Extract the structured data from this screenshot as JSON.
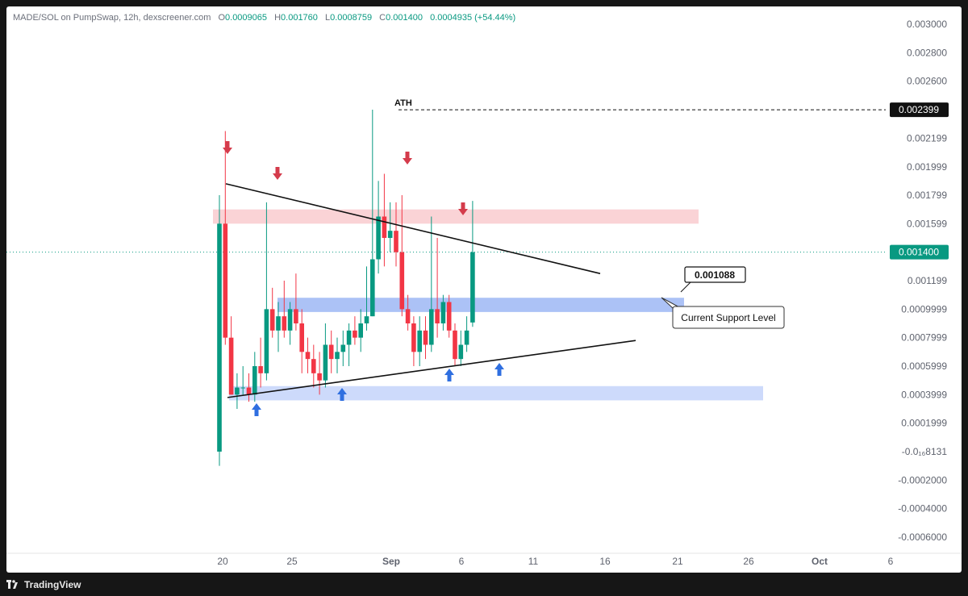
{
  "legend": {
    "title": "MADE/SOL on PumpSwap, 12h, dexscreener.com",
    "o_label": "O",
    "o_value": "0.0009065",
    "h_label": "H",
    "h_value": "0.001760",
    "l_label": "L",
    "l_value": "0.0008759",
    "c_label": "C",
    "c_value": "0.001400",
    "change": "0.0004935 (+54.44%)"
  },
  "footer": {
    "brand": "TradingView"
  },
  "colors": {
    "up": "#089981",
    "down": "#f23645",
    "resistance_zone": "#f8c4c8",
    "support_zone": "#9db7f5",
    "support_zone_light": "#c8d6fb",
    "arrow_down": "#d43b4b",
    "arrow_up": "#2f6fe0"
  },
  "chart_data": {
    "type": "candlestick",
    "title": "MADE/SOL on PumpSwap, 12h",
    "y_tick_labels": [
      "0.003000",
      "0.002800",
      "0.002600",
      "0.002399",
      "0.002199",
      "0.001999",
      "0.001799",
      "0.001599",
      "0.001400",
      "0.001199",
      "0.0009999",
      "0.0007999",
      "0.0005999",
      "0.0003999",
      "0.0001999",
      "-0.0₁₆8131",
      "-0.0002000",
      "-0.0004000",
      "-0.0006000"
    ],
    "x_tick_labels": [
      "20",
      "25",
      "Sep",
      "6",
      "11",
      "16",
      "21",
      "26",
      "Oct",
      "6"
    ],
    "ylim": [
      -0.00065,
      0.00305
    ],
    "candles": [
      {
        "t": "Aug 20",
        "o": 0.0,
        "h": 0.0018,
        "l": -0.0001,
        "c": 0.0016
      },
      {
        "t": "Aug 20",
        "o": 0.0016,
        "h": 0.00225,
        "l": 0.00075,
        "c": 0.0008
      },
      {
        "t": "Aug 21",
        "o": 0.0008,
        "h": 0.00095,
        "l": 0.0004,
        "c": 0.0004
      },
      {
        "t": "Aug 21",
        "o": 0.0004,
        "h": 0.00055,
        "l": 0.0003,
        "c": 0.00045
      },
      {
        "t": "Aug 22",
        "o": 0.00045,
        "h": 0.0006,
        "l": 0.0004,
        "c": 0.00045
      },
      {
        "t": "Aug 22",
        "o": 0.00045,
        "h": 0.00055,
        "l": 0.00035,
        "c": 0.0004
      },
      {
        "t": "Aug 23",
        "o": 0.0004,
        "h": 0.0007,
        "l": 0.00035,
        "c": 0.0006
      },
      {
        "t": "Aug 23",
        "o": 0.0006,
        "h": 0.0008,
        "l": 0.00045,
        "c": 0.00055
      },
      {
        "t": "Aug 24",
        "o": 0.00055,
        "h": 0.00175,
        "l": 0.0005,
        "c": 0.001
      },
      {
        "t": "Aug 24",
        "o": 0.001,
        "h": 0.00115,
        "l": 0.0008,
        "c": 0.00085
      },
      {
        "t": "Aug 25",
        "o": 0.00085,
        "h": 0.00105,
        "l": 0.0007,
        "c": 0.00095
      },
      {
        "t": "Aug 25",
        "o": 0.00095,
        "h": 0.0012,
        "l": 0.0008,
        "c": 0.00085
      },
      {
        "t": "Aug 26",
        "o": 0.00085,
        "h": 0.00105,
        "l": 0.00075,
        "c": 0.001
      },
      {
        "t": "Aug 26",
        "o": 0.001,
        "h": 0.00125,
        "l": 0.00085,
        "c": 0.0009
      },
      {
        "t": "Aug 27",
        "o": 0.0009,
        "h": 0.001,
        "l": 0.00055,
        "c": 0.0007
      },
      {
        "t": "Aug 27",
        "o": 0.0007,
        "h": 0.0008,
        "l": 0.00055,
        "c": 0.00065
      },
      {
        "t": "Aug 28",
        "o": 0.00065,
        "h": 0.00075,
        "l": 0.00045,
        "c": 0.00055
      },
      {
        "t": "Aug 28",
        "o": 0.00055,
        "h": 0.0007,
        "l": 0.0004,
        "c": 0.0005
      },
      {
        "t": "Aug 29",
        "o": 0.0005,
        "h": 0.0009,
        "l": 0.00045,
        "c": 0.00075
      },
      {
        "t": "Aug 29",
        "o": 0.00075,
        "h": 0.00085,
        "l": 0.00055,
        "c": 0.00065
      },
      {
        "t": "Aug 30",
        "o": 0.00065,
        "h": 0.0008,
        "l": 0.00055,
        "c": 0.0007
      },
      {
        "t": "Aug 30",
        "o": 0.0007,
        "h": 0.00085,
        "l": 0.0006,
        "c": 0.00075
      },
      {
        "t": "Aug 31",
        "o": 0.00075,
        "h": 0.0009,
        "l": 0.0006,
        "c": 0.00085
      },
      {
        "t": "Aug 31",
        "o": 0.00085,
        "h": 0.00095,
        "l": 0.00075,
        "c": 0.0008
      },
      {
        "t": "Sep 1",
        "o": 0.0008,
        "h": 0.001,
        "l": 0.0007,
        "c": 0.0009
      },
      {
        "t": "Sep 1",
        "o": 0.0009,
        "h": 0.0013,
        "l": 0.00085,
        "c": 0.00095
      },
      {
        "t": "Sep 2",
        "o": 0.00095,
        "h": 0.0024,
        "l": 0.00095,
        "c": 0.00135
      },
      {
        "t": "Sep 2",
        "o": 0.00135,
        "h": 0.0019,
        "l": 0.00125,
        "c": 0.00165
      },
      {
        "t": "Sep 3",
        "o": 0.00165,
        "h": 0.00195,
        "l": 0.0013,
        "c": 0.0015
      },
      {
        "t": "Sep 3",
        "o": 0.0015,
        "h": 0.00175,
        "l": 0.0014,
        "c": 0.00155
      },
      {
        "t": "Sep 4",
        "o": 0.00155,
        "h": 0.00175,
        "l": 0.0013,
        "c": 0.0014
      },
      {
        "t": "Sep 4",
        "o": 0.0014,
        "h": 0.0018,
        "l": 0.00095,
        "c": 0.001
      },
      {
        "t": "Sep 5",
        "o": 0.001,
        "h": 0.0011,
        "l": 0.00085,
        "c": 0.0009
      },
      {
        "t": "Sep 5",
        "o": 0.0009,
        "h": 0.00095,
        "l": 0.0006,
        "c": 0.0007
      },
      {
        "t": "Sep 6",
        "o": 0.0007,
        "h": 0.00095,
        "l": 0.0006,
        "c": 0.00085
      },
      {
        "t": "Sep 6",
        "o": 0.00085,
        "h": 0.00095,
        "l": 0.00065,
        "c": 0.00075
      },
      {
        "t": "Sep 7",
        "o": 0.00075,
        "h": 0.00165,
        "l": 0.0007,
        "c": 0.001
      },
      {
        "t": "Sep 7",
        "o": 0.001,
        "h": 0.0015,
        "l": 0.0008,
        "c": 0.0009
      },
      {
        "t": "Sep 8",
        "o": 0.0009,
        "h": 0.0011,
        "l": 0.00085,
        "c": 0.00105
      },
      {
        "t": "Sep 8",
        "o": 0.00105,
        "h": 0.0011,
        "l": 0.0008,
        "c": 0.00085
      },
      {
        "t": "Sep 9",
        "o": 0.00085,
        "h": 0.0009,
        "l": 0.0006,
        "c": 0.00065
      },
      {
        "t": "Sep 9",
        "o": 0.00065,
        "h": 0.00085,
        "l": 0.0006,
        "c": 0.00075
      },
      {
        "t": "Sep 10",
        "o": 0.00075,
        "h": 0.00095,
        "l": 0.0007,
        "c": 0.00085
      },
      {
        "t": "Sep 10",
        "o": 0.0009065,
        "h": 0.00176,
        "l": 0.0008759,
        "c": 0.0014
      }
    ],
    "current_price": "0.001400",
    "ath_price": "0.002399",
    "annotations": {
      "ath_label": "ATH",
      "level_callout": "0.001088",
      "support_callout": "Current Support Level"
    },
    "zones": [
      {
        "name": "resistance",
        "from": 0.0016,
        "to": 0.0017
      },
      {
        "name": "current-support",
        "from": 0.00098,
        "to": 0.00108
      },
      {
        "name": "lower-support",
        "from": 0.00036,
        "to": 0.00046
      }
    ],
    "trendlines": [
      {
        "name": "descending-resistance",
        "from": {
          "t": "Aug 20",
          "y": 0.00188
        },
        "to": {
          "t": "Sep 16",
          "y": 0.00125
        }
      },
      {
        "name": "ascending-support",
        "from": {
          "t": "Aug 20",
          "y": 0.00038
        },
        "to": {
          "t": "Sep 18",
          "y": 0.00078
        }
      }
    ],
    "markers": [
      {
        "type": "down",
        "t": "Aug 20"
      },
      {
        "type": "down",
        "t": "Aug 24"
      },
      {
        "type": "down",
        "t": "Sep 2"
      },
      {
        "type": "down",
        "t": "Sep 7"
      },
      {
        "type": "up",
        "t": "Aug 22"
      },
      {
        "type": "up",
        "t": "Aug 28"
      },
      {
        "type": "up",
        "t": "Sep 5"
      },
      {
        "type": "up",
        "t": "Sep 9"
      }
    ],
    "grid": false
  }
}
